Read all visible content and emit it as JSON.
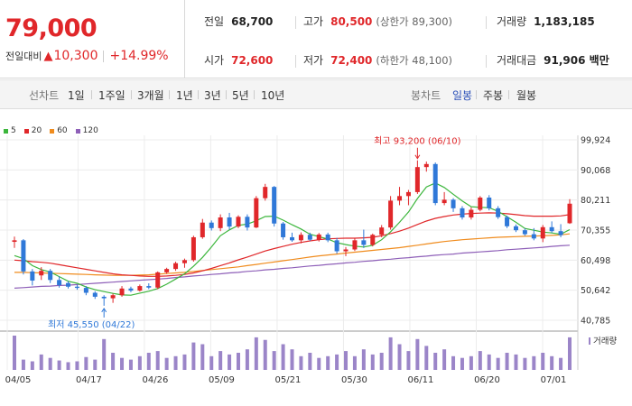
{
  "summary": {
    "price": "79,000",
    "change_label": "전일대비",
    "change_arrow": "▲",
    "change_value": "10,300",
    "change_rate": "+14.99%",
    "prev_close_label": "전일",
    "prev_close": "68,700",
    "open_label": "시가",
    "open": "72,600",
    "high_label": "고가",
    "high": "80,500",
    "upper_limit": "(상한가 89,300)",
    "low_label": "저가",
    "low": "72,400",
    "lower_limit": "(하한가 48,100)",
    "volume_label": "거래량",
    "volume": "1,183,185",
    "amount_label": "거래대금",
    "amount": "91,906 백만"
  },
  "tabs": {
    "line_chart": "선차트",
    "periods": [
      "1일",
      "1주일",
      "3개월",
      "1년",
      "3년",
      "5년",
      "10년"
    ],
    "candle_chart": "봉차트",
    "candle_periods": [
      "일봉",
      "주봉",
      "월봉"
    ],
    "selected": "일봉"
  },
  "chart_data": {
    "type": "candlestick",
    "x_ticks": [
      "04/05",
      "04/17",
      "04/26",
      "05/09",
      "05/21",
      "05/30",
      "06/11",
      "06/20",
      "07/01"
    ],
    "y_ticks": [
      "99,924",
      "90,068",
      "80,211",
      "70,355",
      "60,498",
      "50,642",
      "40,785"
    ],
    "ylim": [
      40785,
      99924
    ],
    "legend": [
      {
        "name": "5",
        "color": "#3cb63c"
      },
      {
        "name": "20",
        "color": "#e0272a"
      },
      {
        "name": "60",
        "color": "#f08c1e"
      },
      {
        "name": "120",
        "color": "#8e5fb8"
      }
    ],
    "annotations": {
      "high": "최고 93,200 (06/10)",
      "low": "최저 45,550 (04/22)"
    },
    "volume_label": "거래량",
    "colors": {
      "up": "#e0272a",
      "down": "#2f78d8",
      "volume": "#9b85c8"
    },
    "candles": [
      {
        "o": 66500,
        "h": 68200,
        "l": 64500,
        "c": 67000
      },
      {
        "o": 67000,
        "h": 67400,
        "l": 55800,
        "c": 56800
      },
      {
        "o": 56800,
        "h": 57600,
        "l": 52200,
        "c": 53800
      },
      {
        "o": 55500,
        "h": 58200,
        "l": 54000,
        "c": 57000
      },
      {
        "o": 57000,
        "h": 57600,
        "l": 53000,
        "c": 54000
      },
      {
        "o": 54000,
        "h": 55200,
        "l": 51500,
        "c": 52300
      },
      {
        "o": 53000,
        "h": 53600,
        "l": 51200,
        "c": 51800
      },
      {
        "o": 51800,
        "h": 52500,
        "l": 50800,
        "c": 51400
      },
      {
        "o": 51400,
        "h": 52000,
        "l": 49000,
        "c": 49800
      },
      {
        "o": 49800,
        "h": 50300,
        "l": 47800,
        "c": 48500
      },
      {
        "o": 48500,
        "h": 49000,
        "l": 45550,
        "c": 48000
      },
      {
        "o": 48000,
        "h": 49500,
        "l": 46500,
        "c": 49000
      },
      {
        "o": 49000,
        "h": 52000,
        "l": 48500,
        "c": 51200
      },
      {
        "o": 51200,
        "h": 51800,
        "l": 50000,
        "c": 50500
      },
      {
        "o": 50500,
        "h": 52500,
        "l": 50200,
        "c": 52000
      },
      {
        "o": 52000,
        "h": 52900,
        "l": 51000,
        "c": 51500
      },
      {
        "o": 51500,
        "h": 56800,
        "l": 51000,
        "c": 56500
      },
      {
        "o": 56500,
        "h": 58000,
        "l": 56000,
        "c": 57600
      },
      {
        "o": 57600,
        "h": 60000,
        "l": 57000,
        "c": 59500
      },
      {
        "o": 59500,
        "h": 61000,
        "l": 58000,
        "c": 60500
      },
      {
        "o": 60500,
        "h": 68500,
        "l": 60000,
        "c": 68000
      },
      {
        "o": 68000,
        "h": 74000,
        "l": 67500,
        "c": 72800
      },
      {
        "o": 72800,
        "h": 73500,
        "l": 70200,
        "c": 71000
      },
      {
        "o": 71000,
        "h": 75500,
        "l": 70000,
        "c": 74500
      },
      {
        "o": 74500,
        "h": 76000,
        "l": 70500,
        "c": 71500
      },
      {
        "o": 71500,
        "h": 75200,
        "l": 71000,
        "c": 74700
      },
      {
        "o": 74700,
        "h": 75500,
        "l": 70200,
        "c": 71200
      },
      {
        "o": 71200,
        "h": 81500,
        "l": 71000,
        "c": 80800
      },
      {
        "o": 80800,
        "h": 85500,
        "l": 80000,
        "c": 84500
      },
      {
        "o": 84500,
        "h": 84800,
        "l": 71500,
        "c": 72500
      },
      {
        "o": 72500,
        "h": 73000,
        "l": 67200,
        "c": 68000
      },
      {
        "o": 68000,
        "h": 69500,
        "l": 66500,
        "c": 67000
      },
      {
        "o": 67000,
        "h": 69600,
        "l": 66000,
        "c": 68800
      },
      {
        "o": 68800,
        "h": 69500,
        "l": 66800,
        "c": 67200
      },
      {
        "o": 67200,
        "h": 69400,
        "l": 66600,
        "c": 68900
      },
      {
        "o": 68900,
        "h": 69500,
        "l": 66400,
        "c": 67000
      },
      {
        "o": 67000,
        "h": 67800,
        "l": 62600,
        "c": 63400
      },
      {
        "o": 63400,
        "h": 64800,
        "l": 61800,
        "c": 64000
      },
      {
        "o": 64000,
        "h": 67600,
        "l": 63500,
        "c": 67000
      },
      {
        "o": 67000,
        "h": 70500,
        "l": 64500,
        "c": 65500
      },
      {
        "o": 65500,
        "h": 69200,
        "l": 65000,
        "c": 68800
      },
      {
        "o": 68800,
        "h": 72000,
        "l": 68000,
        "c": 71200
      },
      {
        "o": 71200,
        "h": 81500,
        "l": 70500,
        "c": 80000
      },
      {
        "o": 80000,
        "h": 84500,
        "l": 78500,
        "c": 81500
      },
      {
        "o": 81500,
        "h": 83500,
        "l": 78500,
        "c": 82800
      },
      {
        "o": 82800,
        "h": 93200,
        "l": 82200,
        "c": 91000
      },
      {
        "o": 91000,
        "h": 92800,
        "l": 89500,
        "c": 92000
      },
      {
        "o": 92000,
        "h": 92500,
        "l": 78500,
        "c": 79200
      },
      {
        "o": 79200,
        "h": 82800,
        "l": 78500,
        "c": 80300
      },
      {
        "o": 80300,
        "h": 80800,
        "l": 76300,
        "c": 77500
      },
      {
        "o": 77500,
        "h": 78200,
        "l": 73800,
        "c": 74500
      },
      {
        "o": 74500,
        "h": 77800,
        "l": 73800,
        "c": 77000
      },
      {
        "o": 77000,
        "h": 81500,
        "l": 76500,
        "c": 81000
      },
      {
        "o": 81000,
        "h": 81800,
        "l": 76800,
        "c": 77500
      },
      {
        "o": 77500,
        "h": 78200,
        "l": 74000,
        "c": 74600
      },
      {
        "o": 74600,
        "h": 75100,
        "l": 71000,
        "c": 71600
      },
      {
        "o": 71600,
        "h": 72200,
        "l": 69700,
        "c": 70300
      },
      {
        "o": 70300,
        "h": 70900,
        "l": 68500,
        "c": 69000
      },
      {
        "o": 69000,
        "h": 71000,
        "l": 67000,
        "c": 67600
      },
      {
        "o": 67600,
        "h": 72000,
        "l": 66400,
        "c": 71300
      },
      {
        "o": 71300,
        "h": 73200,
        "l": 69500,
        "c": 70000
      },
      {
        "o": 70000,
        "h": 72300,
        "l": 68000,
        "c": 68700
      },
      {
        "o": 72600,
        "h": 80500,
        "l": 72400,
        "c": 79000
      }
    ],
    "volume": [
      40,
      12,
      10,
      18,
      14,
      11,
      9,
      10,
      15,
      12,
      36,
      20,
      14,
      12,
      16,
      20,
      22,
      14,
      16,
      18,
      32,
      30,
      16,
      22,
      18,
      20,
      24,
      38,
      35,
      22,
      30,
      24,
      16,
      20,
      14,
      16,
      18,
      22,
      16,
      24,
      18,
      20,
      38,
      30,
      22,
      36,
      28,
      20,
      24,
      16,
      14,
      16,
      22,
      18,
      14,
      20,
      18,
      14,
      16,
      20,
      16,
      14,
      38
    ],
    "ma5": [
      62000,
      61000,
      58700,
      57400,
      56600,
      55100,
      53600,
      52900,
      51700,
      50800,
      50200,
      49600,
      49100,
      49000,
      49700,
      50300,
      51200,
      52600,
      54300,
      56000,
      58500,
      61400,
      64800,
      68500,
      70400,
      71900,
      72300,
      73400,
      74800,
      74900,
      73600,
      72100,
      70700,
      69000,
      68200,
      67400,
      66200,
      65600,
      65100,
      64800,
      65400,
      67200,
      69800,
      72900,
      76300,
      80700,
      84500,
      85800,
      84300,
      82100,
      79900,
      78000,
      77800,
      77700,
      76500,
      74700,
      72900,
      70900,
      70300,
      69700,
      69400,
      69000,
      70500
    ],
    "ma20": [
      60500,
      60300,
      60000,
      59800,
      59500,
      59000,
      58500,
      58000,
      57500,
      57000,
      56500,
      56000,
      55700,
      55500,
      55300,
      55200,
      55200,
      55300,
      55500,
      55800,
      56300,
      57000,
      57800,
      58700,
      59600,
      60600,
      61500,
      62500,
      63500,
      64300,
      65000,
      65700,
      66300,
      66800,
      67200,
      67500,
      67600,
      67700,
      67700,
      67800,
      68000,
      68500,
      69200,
      70000,
      71000,
      72200,
      73300,
      74200,
      74800,
      75300,
      75600,
      75800,
      75900,
      76000,
      75900,
      75700,
      75400,
      75100,
      74900,
      74900,
      74900,
      75000,
      75400
    ],
    "ma60": [
      56500,
      56500,
      56400,
      56300,
      56200,
      56100,
      56000,
      55900,
      55800,
      55700,
      55600,
      55500,
      55500,
      55500,
      55600,
      55700,
      55900,
      56100,
      56300,
      56500,
      56800,
      57100,
      57400,
      57700,
      58000,
      58300,
      58700,
      59100,
      59500,
      59900,
      60300,
      60700,
      61100,
      61500,
      61900,
      62200,
      62500,
      62800,
      63100,
      63400,
      63700,
      64000,
      64300,
      64600,
      65000,
      65400,
      65800,
      66200,
      66600,
      66900,
      67200,
      67400,
      67600,
      67800,
      68000,
      68100,
      68200,
      68300,
      68400,
      68500,
      68600,
      68800,
      69100
    ],
    "ma120": [
      51300,
      51500,
      51700,
      51900,
      52000,
      52200,
      52300,
      52500,
      52700,
      52900,
      53100,
      53300,
      53500,
      53700,
      53900,
      54100,
      54300,
      54500,
      54800,
      55000,
      55300,
      55500,
      55800,
      56000,
      56300,
      56500,
      56800,
      57000,
      57300,
      57500,
      57800,
      58000,
      58300,
      58600,
      58800,
      59100,
      59300,
      59600,
      59800,
      60100,
      60300,
      60600,
      60800,
      61100,
      61300,
      61600,
      61800,
      62100,
      62300,
      62500,
      62800,
      63000,
      63200,
      63400,
      63600,
      63900,
      64100,
      64300,
      64500,
      64700,
      65000,
      65200,
      65400
    ]
  }
}
